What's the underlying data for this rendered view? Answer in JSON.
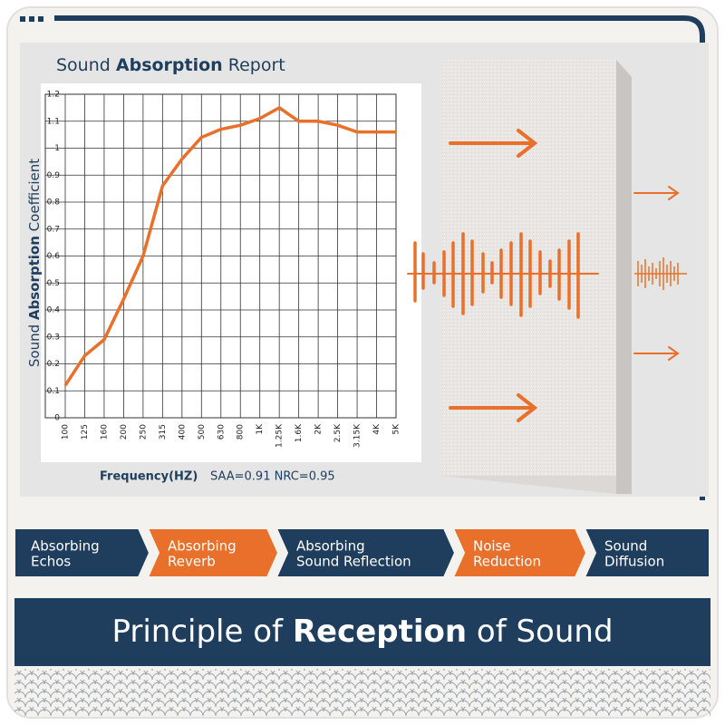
{
  "chart_data": {
    "type": "line",
    "title": [
      "Sound",
      "Absorption",
      "Report"
    ],
    "y_label": [
      "Sound",
      "Absorption",
      "Coefficient"
    ],
    "x_label": "Frequency(HZ)",
    "note": "SAA=0.91 NRC=0.95",
    "categories": [
      "100",
      "125",
      "160",
      "200",
      "250",
      "315",
      "400",
      "500",
      "630",
      "800",
      "1K",
      "1.25K",
      "1.6K",
      "2K",
      "2.5K",
      "3.15K",
      "4K",
      "5K"
    ],
    "values": [
      0.12,
      0.23,
      0.29,
      0.44,
      0.6,
      0.86,
      0.96,
      1.04,
      1.07,
      1.085,
      1.11,
      1.15,
      1.1,
      1.1,
      1.085,
      1.06,
      1.06,
      1.06
    ],
    "color": "#e8702a",
    "ylim": [
      0,
      1.2
    ],
    "yticks": [
      0,
      0.1,
      0.2,
      0.3,
      0.4,
      0.5,
      0.6,
      0.7,
      0.8,
      0.9,
      1,
      1.1,
      1.2
    ],
    "grid": true
  },
  "tabs": [
    {
      "lines": [
        "Absorbing",
        "Echos"
      ],
      "color": "#1f3d5c"
    },
    {
      "lines": [
        "Absorbing",
        "Reverb"
      ],
      "color": "#e8702a"
    },
    {
      "lines": [
        "Absorbing",
        "Sound Reflection"
      ],
      "color": "#1f3d5c"
    },
    {
      "lines": [
        "Noise",
        "Reduction"
      ],
      "color": "#e8702a"
    },
    {
      "lines": [
        "Sound",
        "Diffusion"
      ],
      "color": "#1f3d5c"
    }
  ],
  "banner": [
    "Principle of",
    "Reception",
    "of Sound"
  ]
}
